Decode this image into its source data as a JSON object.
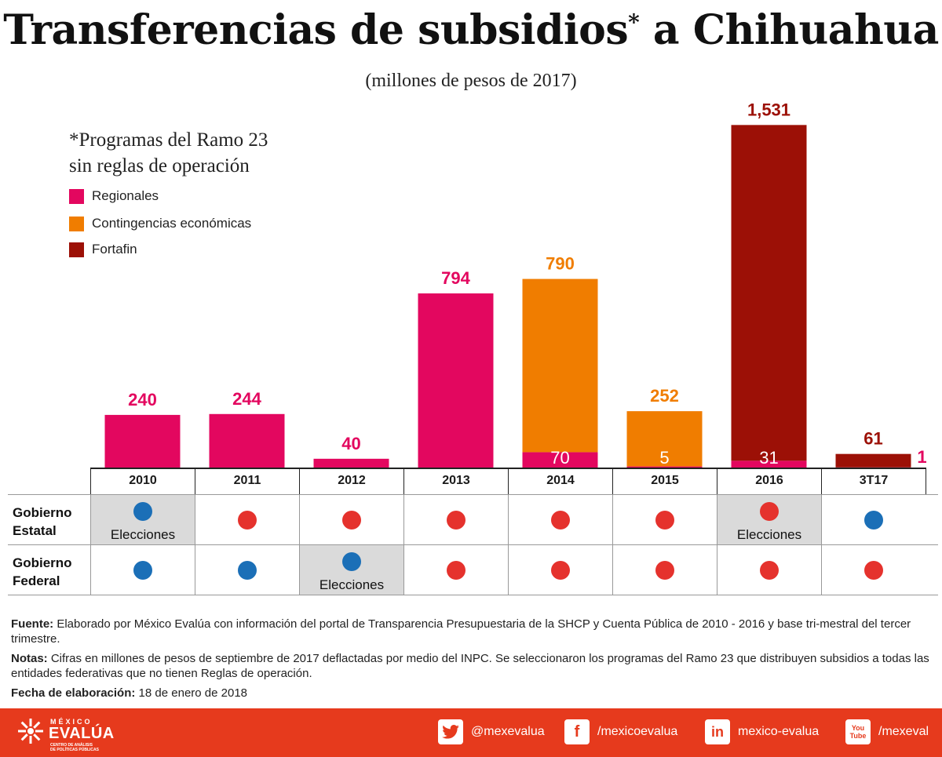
{
  "title": "Transferencias de subsidios",
  "title_star": "*",
  "title_tail": " a Chihuahua",
  "subtitle": "(millones de pesos de 2017)",
  "legend": {
    "title_line1": "*Programas del Ramo 23",
    "title_line2": "sin reglas de operación",
    "items": [
      {
        "label": "Regionales",
        "color": "#e3075f"
      },
      {
        "label": "Contingencias económicas",
        "color": "#f07d00"
      },
      {
        "label": "Fortafin",
        "color": "#9c1006"
      }
    ]
  },
  "chart_data": {
    "type": "bar",
    "stacked": true,
    "categories": [
      "2010",
      "2011",
      "2012",
      "2013",
      "2014",
      "2015",
      "2016",
      "3T17"
    ],
    "series": [
      {
        "name": "Regionales",
        "color": "#e3075f",
        "values": [
          240,
          244,
          40,
          794,
          70,
          5,
          31,
          1
        ]
      },
      {
        "name": "Contingencias económicas",
        "color": "#f07d00",
        "values": [
          0,
          0,
          0,
          0,
          790,
          252,
          0,
          0
        ]
      },
      {
        "name": "Fortafin",
        "color": "#9c1006",
        "values": [
          0,
          0,
          0,
          0,
          0,
          0,
          1531,
          61
        ]
      }
    ],
    "labels": [
      {
        "cat": "2010",
        "text": "240",
        "color": "#e3075f"
      },
      {
        "cat": "2011",
        "text": "244",
        "color": "#e3075f"
      },
      {
        "cat": "2012",
        "text": "40",
        "color": "#e3075f"
      },
      {
        "cat": "2013",
        "text": "794",
        "color": "#e3075f"
      },
      {
        "cat": "2014",
        "text": "790",
        "color": "#f07d00"
      },
      {
        "cat": "2014",
        "text": "70",
        "color": "#ffffff",
        "inside": true
      },
      {
        "cat": "2015",
        "text": "252",
        "color": "#f07d00"
      },
      {
        "cat": "2015",
        "text": "5",
        "color": "#ffffff",
        "inside": true
      },
      {
        "cat": "2016",
        "text": "1,531",
        "color": "#9c1006"
      },
      {
        "cat": "2016",
        "text": "31",
        "color": "#ffffff",
        "inside": true
      },
      {
        "cat": "3T17",
        "text": "61",
        "color": "#9c1006"
      },
      {
        "cat": "3T17",
        "text": "1",
        "color": "#e3075f",
        "side": true
      }
    ],
    "ylim": [
      0,
      1531
    ],
    "xlabel": "",
    "ylabel": ""
  },
  "table": {
    "rows": [
      {
        "label_line1": "Gobierno",
        "label_line2": "Estatal",
        "dots": [
          "#1b6fb7",
          "#e5322d",
          "#e5322d",
          "#e5322d",
          "#e5322d",
          "#e5322d",
          "#e5322d",
          "#1b6fb7"
        ],
        "elections": [
          true,
          false,
          false,
          false,
          false,
          false,
          true,
          false
        ]
      },
      {
        "label_line1": "Gobierno",
        "label_line2": "Federal",
        "dots": [
          "#1b6fb7",
          "#1b6fb7",
          "#1b6fb7",
          "#e5322d",
          "#e5322d",
          "#e5322d",
          "#e5322d",
          "#e5322d"
        ],
        "elections": [
          false,
          false,
          true,
          false,
          false,
          false,
          false,
          false
        ]
      }
    ],
    "election_label": "Elecciones"
  },
  "notes": {
    "fuente_label": "Fuente:",
    "fuente_text": " Elaborado por México Evalúa con información del portal de Transparencia Presupuestaria de la SHCP y Cuenta Pública de 2010 - 2016 y base tri-mestral del tercer trimestre.",
    "notas_label": "Notas:",
    "notas_text": " Cifras en millones de pesos de septiembre de 2017 deflactadas por medio del INPC. Se seleccionaron los programas del Ramo 23 que distribuyen subsidios a todas las entidades federativas que no tienen Reglas de operación.",
    "fecha_label": "Fecha de elaboración:",
    "fecha_text": " 18 de enero de 2018"
  },
  "footer": {
    "brand_top": "MÉXICO",
    "brand": "EVALÚA",
    "brand_sub1": "CENTRO DE ANÁLISIS",
    "brand_sub2": "DE POLÍTICAS PÚBLICAS",
    "twitter": "@mexevalua",
    "facebook": "/mexicoevalua",
    "linkedin": "mexico-evalua",
    "youtube": "/mexeval",
    "youtube_icon_text": "You Tube",
    "accent": "#e63a1d"
  }
}
